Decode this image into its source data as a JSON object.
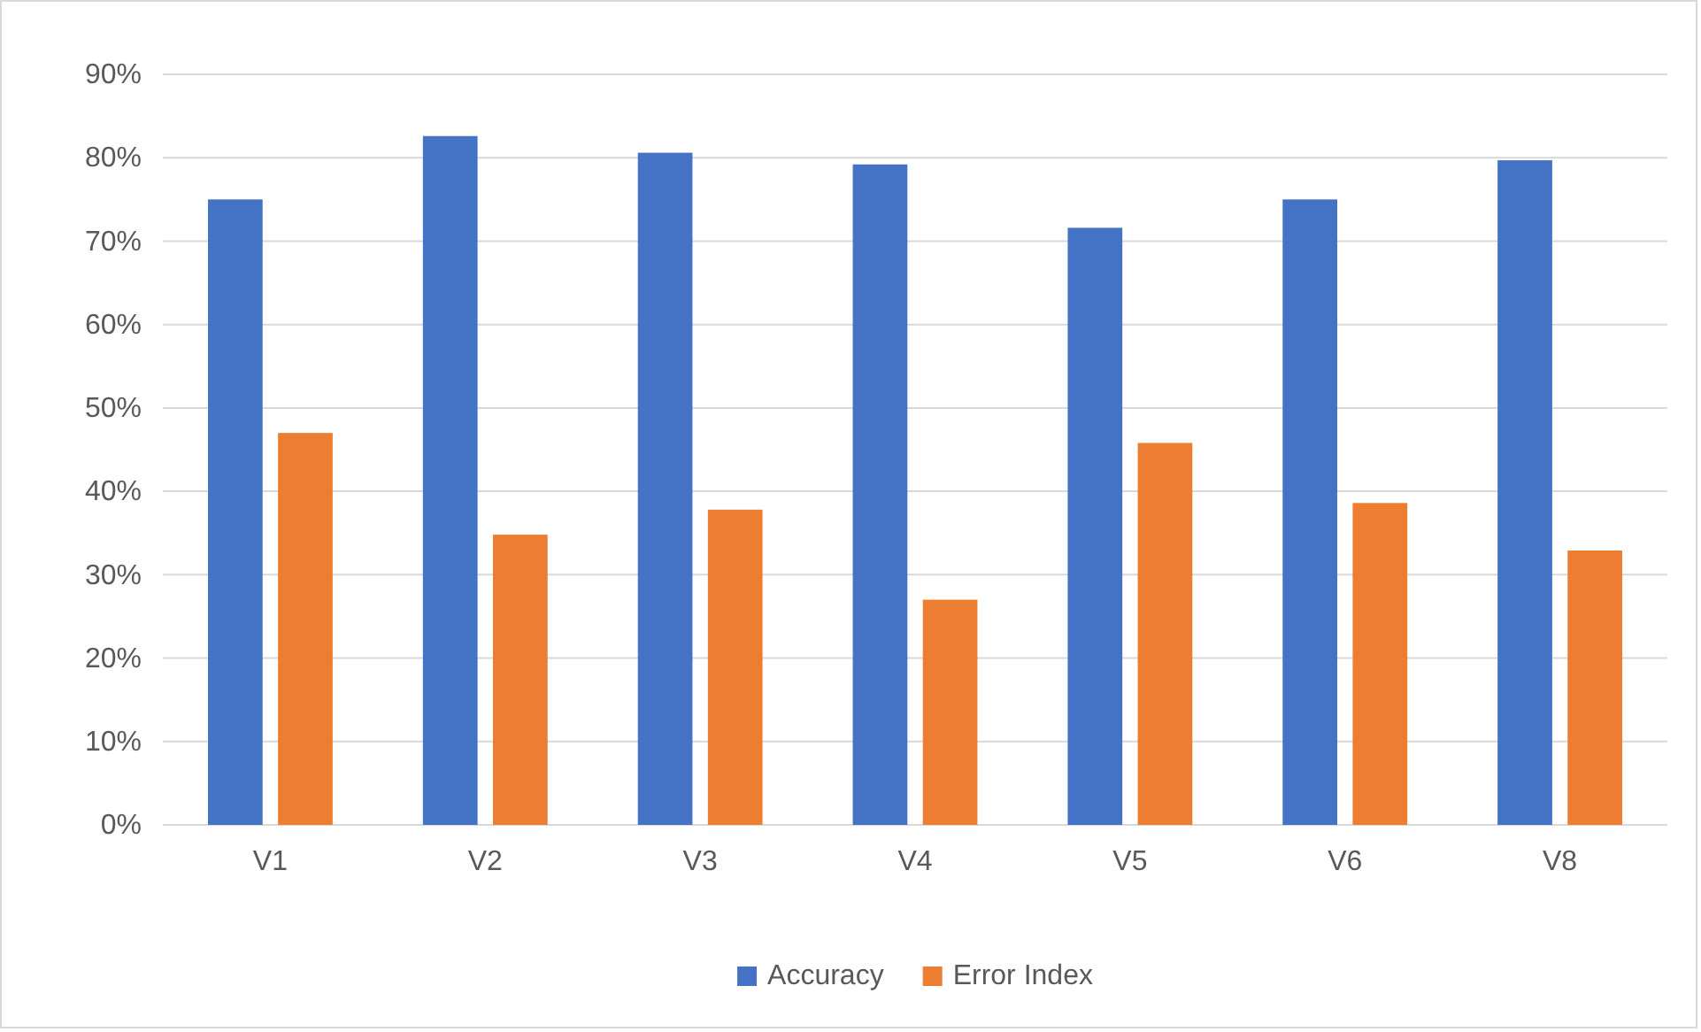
{
  "chart_data": {
    "type": "bar",
    "categories": [
      "V1",
      "V2",
      "V3",
      "V4",
      "V5",
      "V6",
      "V8"
    ],
    "series": [
      {
        "name": "Accuracy",
        "color": "#4472c4",
        "values": [
          75,
          82.6,
          80.6,
          79.2,
          71.6,
          75,
          79.7
        ]
      },
      {
        "name": "Error Index",
        "color": "#ed7d31",
        "values": [
          47,
          34.8,
          37.8,
          27,
          45.8,
          38.6,
          32.9
        ]
      }
    ],
    "ylim": [
      0,
      90
    ],
    "yticks": [
      {
        "value": 0,
        "label": "0%"
      },
      {
        "value": 10,
        "label": "10%"
      },
      {
        "value": 20,
        "label": "20%"
      },
      {
        "value": 30,
        "label": "30%"
      },
      {
        "value": 40,
        "label": "40%"
      },
      {
        "value": 50,
        "label": "50%"
      },
      {
        "value": 60,
        "label": "60%"
      },
      {
        "value": 70,
        "label": "70%"
      },
      {
        "value": 80,
        "label": "80%"
      },
      {
        "value": 90,
        "label": "90%"
      }
    ],
    "grid": "y",
    "legend": "bottom"
  }
}
